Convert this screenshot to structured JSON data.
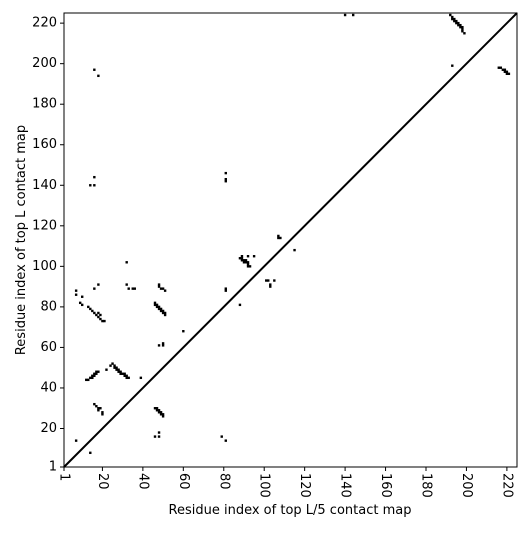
{
  "chart_data": {
    "type": "scatter",
    "x_label": "Residue index of top L/5 contact map",
    "y_label": "Residue index of top L contact map",
    "color": "#000000",
    "x": [
      7,
      7,
      9,
      10,
      10,
      7,
      14,
      12,
      13,
      14,
      15,
      15,
      16,
      16,
      17,
      17,
      18,
      16,
      17,
      18,
      18,
      19,
      20,
      20,
      13,
      14,
      15,
      16,
      17,
      18,
      18,
      19,
      19,
      20,
      21,
      14,
      16,
      16,
      16,
      18,
      16,
      18,
      22,
      24,
      25,
      26,
      26,
      27,
      27,
      28,
      28,
      29,
      29,
      30,
      31,
      31,
      32,
      32,
      33,
      32,
      32,
      33,
      35,
      36,
      39,
      46,
      46,
      47,
      47,
      48,
      48,
      49,
      49,
      50,
      50,
      51,
      51,
      48,
      48,
      49,
      50,
      51,
      48,
      50,
      50,
      46,
      47,
      47,
      48,
      48,
      49,
      49,
      50,
      50,
      46,
      48,
      48,
      60,
      81,
      81,
      81,
      81,
      81,
      79,
      81,
      88,
      88,
      89,
      89,
      90,
      90,
      91,
      91,
      92,
      92,
      92,
      93,
      89,
      92,
      95,
      101,
      102,
      103,
      103,
      105,
      107,
      108,
      107,
      115,
      140,
      144,
      192,
      193,
      193,
      194,
      194,
      195,
      195,
      196,
      196,
      197,
      197,
      198,
      198,
      198,
      199,
      193,
      216,
      217,
      218,
      219,
      219,
      220,
      220,
      221
    ],
    "values": [
      88,
      86,
      82,
      81,
      85,
      14,
      8,
      44,
      44,
      45,
      46,
      45,
      46,
      47,
      47,
      48,
      48,
      32,
      31,
      30,
      29,
      30,
      28,
      27,
      80,
      79,
      78,
      77,
      76,
      75,
      77,
      74,
      76,
      73,
      73,
      140,
      140,
      144,
      197,
      194,
      89,
      91,
      49,
      51,
      52,
      51,
      50,
      50,
      49,
      49,
      48,
      48,
      47,
      47,
      47,
      46,
      46,
      45,
      45,
      102,
      91,
      89,
      89,
      89,
      45,
      82,
      81,
      81,
      80,
      80,
      79,
      79,
      78,
      78,
      77,
      77,
      76,
      91,
      90,
      89,
      89,
      88,
      61,
      62,
      61,
      30,
      30,
      29,
      29,
      28,
      28,
      27,
      27,
      26,
      16,
      18,
      16,
      68,
      146,
      143,
      142,
      89,
      88,
      16,
      14,
      81,
      104,
      104,
      103,
      103,
      102,
      103,
      102,
      102,
      101,
      100,
      100,
      105,
      105,
      105,
      93,
      93,
      91,
      90,
      93,
      115,
      114,
      114,
      108,
      224,
      224,
      224,
      223,
      222,
      222,
      221,
      221,
      220,
      220,
      219,
      219,
      218,
      218,
      217,
      216,
      215,
      199,
      198,
      198,
      197,
      197,
      196,
      196,
      195,
      195
    ],
    "xlim": [
      1,
      225
    ],
    "ylim": [
      1,
      225
    ],
    "xticks": [
      1,
      20,
      40,
      60,
      80,
      100,
      120,
      140,
      160,
      180,
      200,
      220
    ],
    "yticks": [
      1,
      20,
      40,
      60,
      80,
      100,
      120,
      140,
      160,
      180,
      200,
      220
    ],
    "diagonal": true
  }
}
